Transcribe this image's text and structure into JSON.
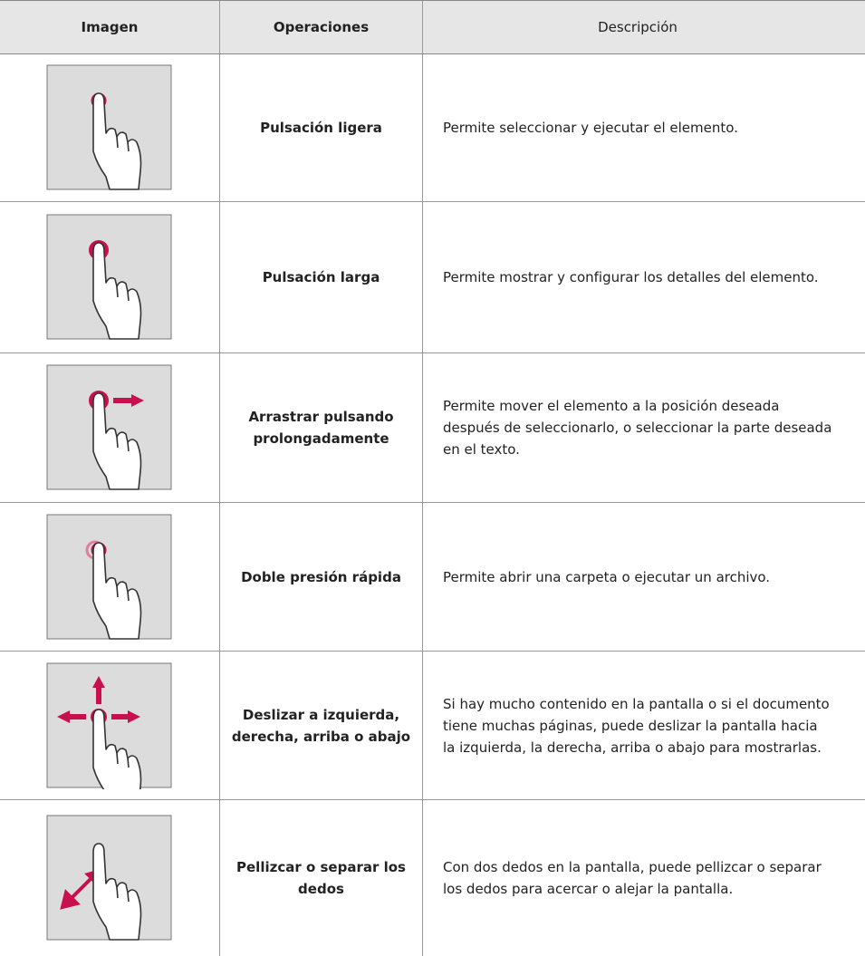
{
  "header": {
    "columns": [
      "Imagen",
      "Operaciones",
      "Descripción"
    ]
  },
  "table": {
    "rows": [
      [
        "Pulsación ligera",
        "Permite seleccionar y ejecutar el elemento."
      ],
      [
        "Pulsación larga",
        "Permite mostrar y configurar los detalles del elemento."
      ],
      [
        "Arrastrar pulsando prolongadamente",
        "Permite mover el elemento a la posición deseada después de seleccionarlo, o seleccionar la parte deseada en el texto."
      ],
      [
        "Doble presión rápida",
        "Permite abrir una carpeta o ejecutar un archivo."
      ],
      [
        "Deslizar a izquierda, derecha, arriba o abajo",
        "Si hay mucho contenido en la pantalla o si el documento tiene muchas páginas, puede deslizar la pantalla hacia la izquierda, la derecha, arriba o abajo para mostrarlas."
      ],
      [
        "Pellizcar o separar los dedos",
        "Con dos dedos en la pantalla, puede pellizcar o separar los dedos para acercar o alejar la pantalla."
      ]
    ]
  }
}
